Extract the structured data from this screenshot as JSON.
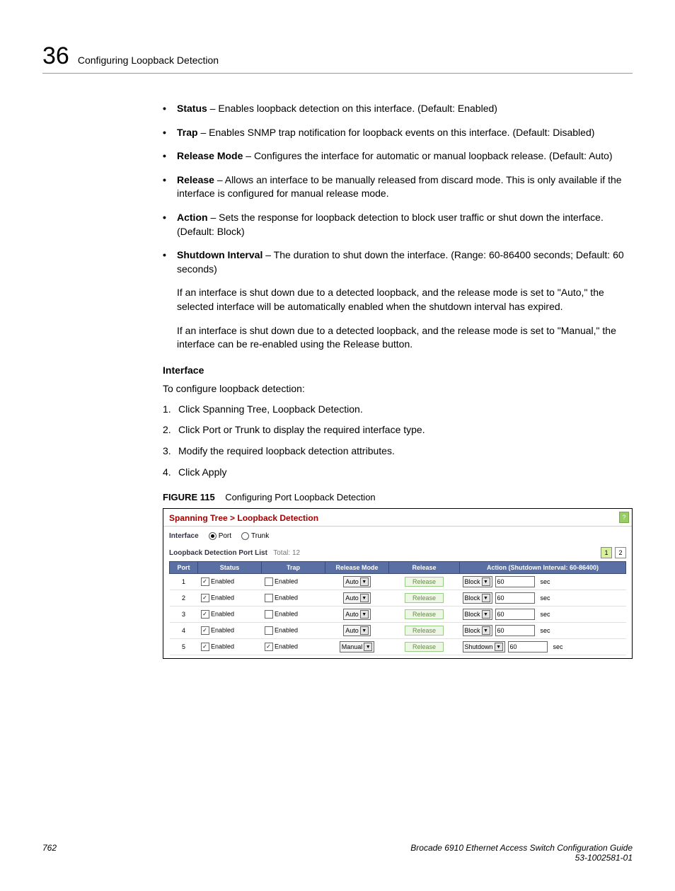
{
  "header": {
    "page_number_large": "36",
    "section": "Configuring Loopback Detection"
  },
  "bullets": [
    {
      "term": "Status",
      "desc": " – Enables loopback detection on this interface. (Default: Enabled)"
    },
    {
      "term": "Trap",
      "desc": " – Enables SNMP trap notification for loopback events on this interface. (Default: Disabled)"
    },
    {
      "term": "Release Mode",
      "desc": " – Configures the interface for automatic or manual loopback release. (Default: Auto)"
    },
    {
      "term": "Release",
      "desc": " – Allows an interface to be manually released from discard mode. This is only available if the interface is configured for manual release mode."
    },
    {
      "term": "Action",
      "desc": " – Sets the response for loopback detection to block user traffic or shut down the interface. (Default: Block)"
    },
    {
      "term": "Shutdown Interval",
      "desc": " – The duration to shut down the interface. (Range: 60-86400 seconds; Default: 60 seconds)"
    }
  ],
  "paras": [
    "If an interface is shut down due to a detected loopback, and the release mode is set to \"Auto,\" the selected interface will be automatically enabled when the shutdown interval has expired.",
    "If an interface is shut down due to a detected loopback, and the release mode is set to \"Manual,\" the interface can be re-enabled using the Release button."
  ],
  "interface_section": {
    "heading": "Interface",
    "intro": "To configure loopback detection:",
    "steps": [
      "Click Spanning Tree, Loopback Detection.",
      "Click Port or Trunk to display the required interface type.",
      "Modify the required loopback detection attributes.",
      "Click Apply"
    ]
  },
  "figure": {
    "label": "FIGURE 115",
    "caption": "Configuring Port Loopback Detection"
  },
  "ui": {
    "title": "Spanning Tree > Loopback Detection",
    "interface_label": "Interface",
    "radio_port": "Port",
    "radio_trunk": "Trunk",
    "radio_selected": "port",
    "list_label": "Loopback Detection Port List",
    "total_label": "Total:",
    "total_value": "12",
    "pager": [
      "1",
      "2"
    ],
    "pager_active": 0,
    "columns": [
      "Port",
      "Status",
      "Trap",
      "Release Mode",
      "Release",
      "Action (Shutdown Interval: 60-86400)"
    ],
    "col_widths": [
      "40px",
      "90px",
      "90px",
      "90px",
      "100px",
      "auto"
    ],
    "enabled_label": "Enabled",
    "release_btn": "Release",
    "sec_label": "sec",
    "rows": [
      {
        "port": "1",
        "status": true,
        "trap": false,
        "mode": "Auto",
        "action": "Block",
        "interval": "60"
      },
      {
        "port": "2",
        "status": true,
        "trap": false,
        "mode": "Auto",
        "action": "Block",
        "interval": "60"
      },
      {
        "port": "3",
        "status": true,
        "trap": false,
        "mode": "Auto",
        "action": "Block",
        "interval": "60"
      },
      {
        "port": "4",
        "status": true,
        "trap": false,
        "mode": "Auto",
        "action": "Block",
        "interval": "60"
      },
      {
        "port": "5",
        "status": true,
        "trap": true,
        "mode": "Manual",
        "action": "Shutdown",
        "interval": "60"
      }
    ]
  },
  "footer": {
    "page": "762",
    "book": "Brocade 6910 Ethernet Access Switch Configuration Guide",
    "doc_id": "53-1002581-01"
  }
}
